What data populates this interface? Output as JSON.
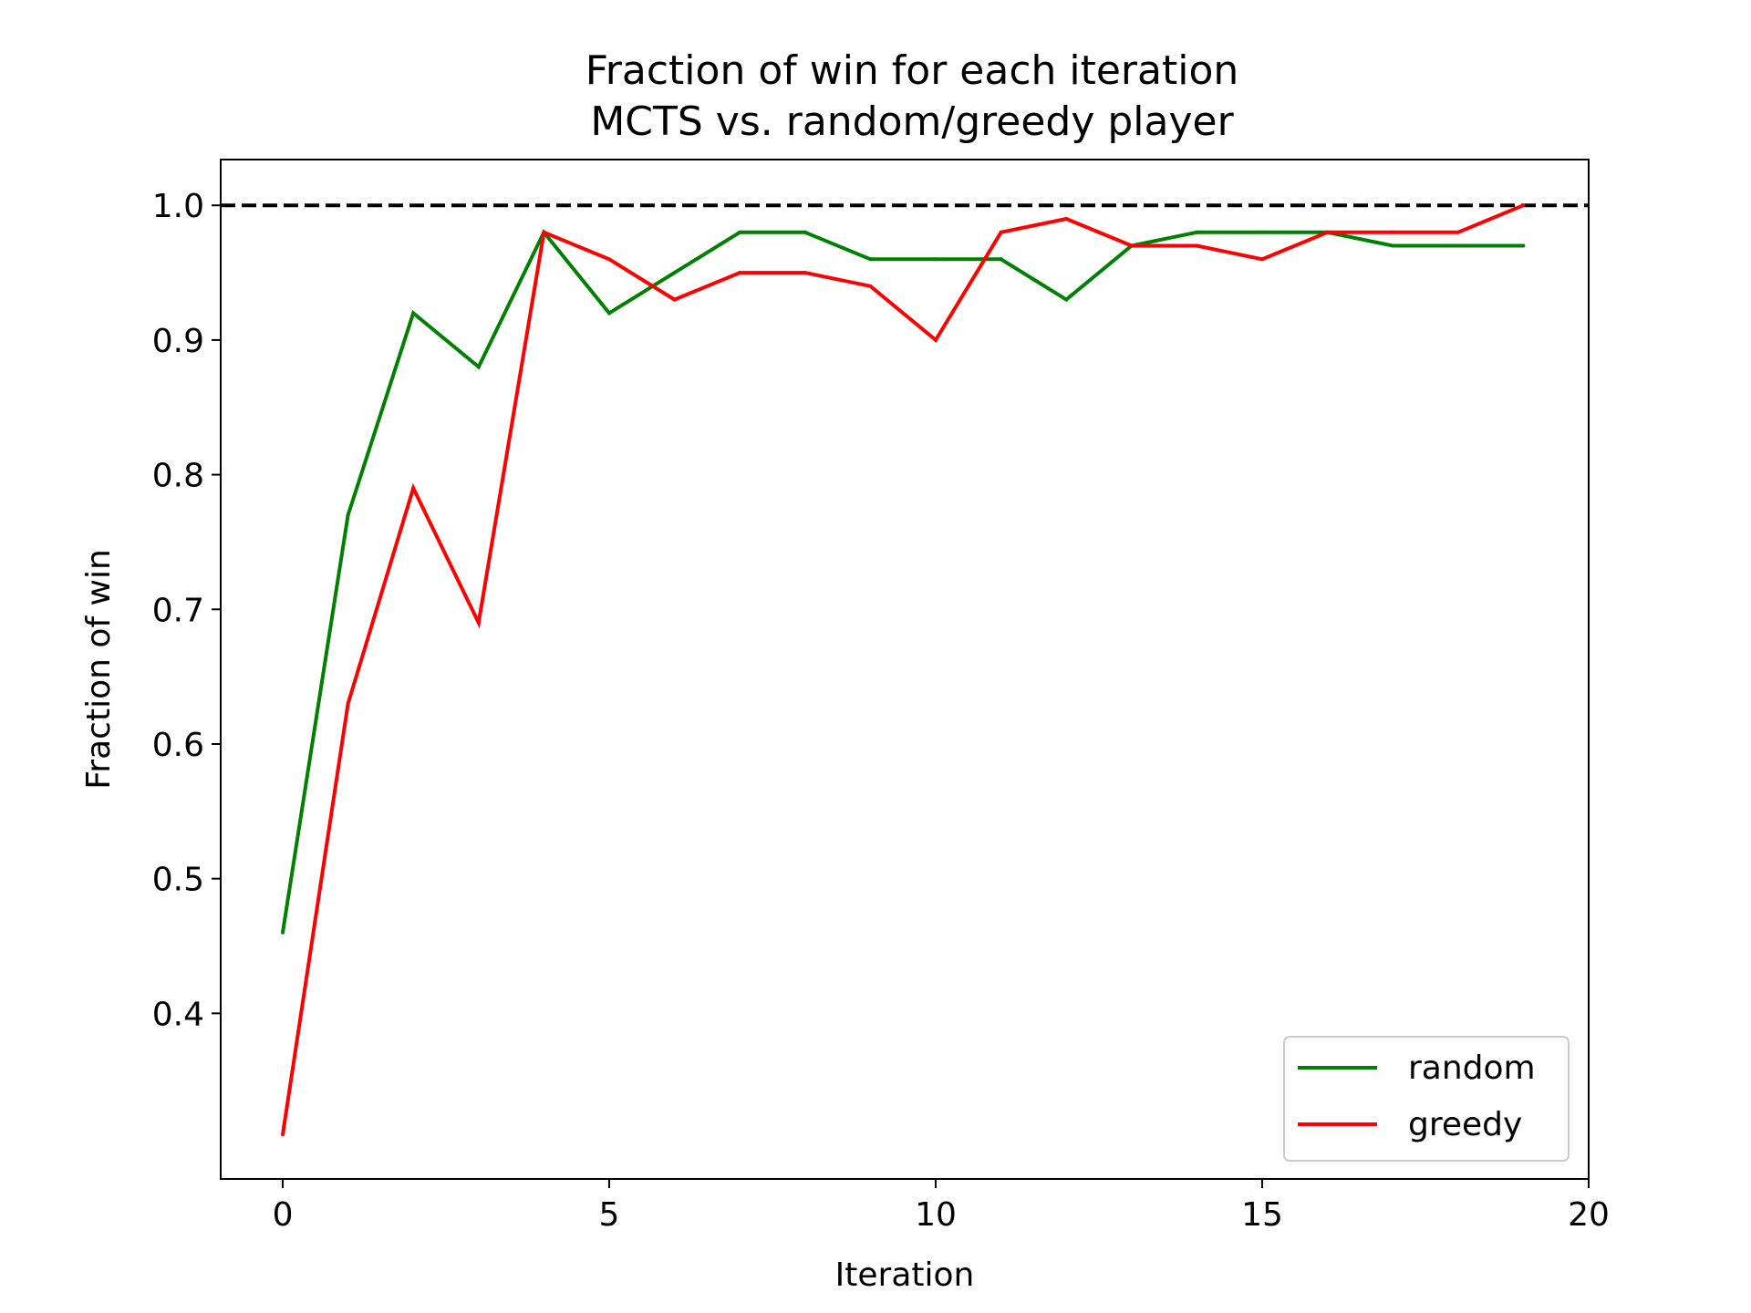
{
  "chart_data": {
    "type": "line",
    "title_line1": "Fraction of win for each iteration",
    "title_line2": "MCTS vs. random/greedy player",
    "xlabel": "Iteration",
    "ylabel": "Fraction of win",
    "xlim": [
      -0.95,
      20
    ],
    "ylim": [
      0.277,
      1.034
    ],
    "xticks": [
      0,
      5,
      10,
      15,
      20
    ],
    "xtick_labels": [
      "0",
      "5",
      "10",
      "15",
      "20"
    ],
    "yticks": [
      0.4,
      0.5,
      0.6,
      0.7,
      0.8,
      0.9,
      1.0
    ],
    "ytick_labels": [
      "0.4",
      "0.5",
      "0.6",
      "0.7",
      "0.8",
      "0.9",
      "1.0"
    ],
    "grid": false,
    "legend_position": "lower-right",
    "reference_line": {
      "y": 1.0,
      "style": "dashed",
      "color": "#000000"
    },
    "x": [
      0,
      1,
      2,
      3,
      4,
      5,
      6,
      7,
      8,
      9,
      10,
      11,
      12,
      13,
      14,
      15,
      16,
      17,
      18,
      19
    ],
    "series": [
      {
        "name": "random",
        "color": "#008000",
        "values": [
          0.46,
          0.77,
          0.92,
          0.88,
          0.98,
          0.92,
          0.95,
          0.98,
          0.98,
          0.96,
          0.96,
          0.96,
          0.93,
          0.97,
          0.98,
          0.98,
          0.98,
          0.97,
          0.97,
          0.97
        ]
      },
      {
        "name": "greedy",
        "color": "#ff0000",
        "values": [
          0.31,
          0.63,
          0.79,
          0.69,
          0.98,
          0.96,
          0.93,
          0.95,
          0.95,
          0.94,
          0.9,
          0.98,
          0.99,
          0.97,
          0.97,
          0.96,
          0.98,
          0.98,
          0.98,
          1.0
        ]
      }
    ]
  }
}
